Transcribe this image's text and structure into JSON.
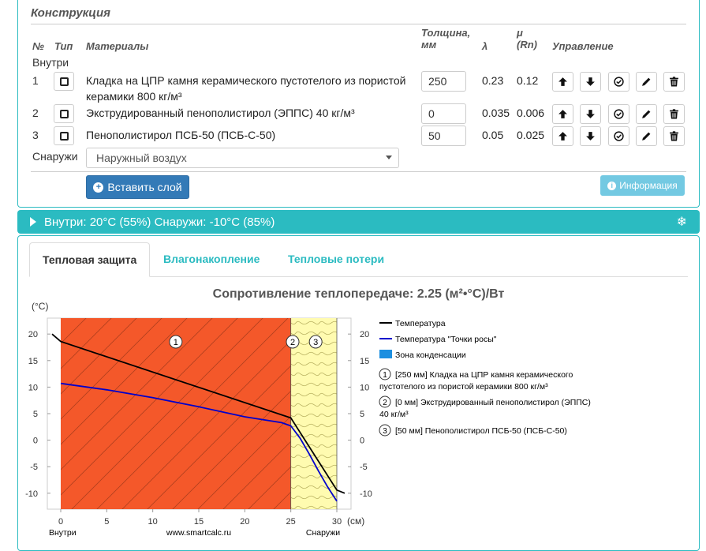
{
  "construction": {
    "title": "Конструкция",
    "headers": {
      "num": "№",
      "type": "Тип",
      "materials": "Материалы",
      "thickness_line1": "Толщина,",
      "thickness_line2": "мм",
      "lambda": "λ",
      "mu_line1": "μ",
      "mu_line2": "(Rn)",
      "control": "Управление"
    },
    "inside_label": "Внутри",
    "outside_label": "Снаружи",
    "layers": [
      {
        "num": "1",
        "name_line1": "Кладка на ЦПР камня керамического пустотелого из пористой",
        "name_line2": "керамики 800 кг/м³",
        "thickness": "250",
        "lambda": "0.23",
        "mu": "0.12"
      },
      {
        "num": "2",
        "name_line1": "Экструдированный пенополистирол (ЭППС) 40 кг/м³",
        "name_line2": "",
        "thickness": "0",
        "lambda": "0.035",
        "mu": "0.006"
      },
      {
        "num": "3",
        "name_line1": "Пенополистирол ПСБ-50 (ПСБ-С-50)",
        "name_line2": "",
        "thickness": "50",
        "lambda": "0.05",
        "mu": "0.025"
      }
    ],
    "outside_select": "Наружный воздух",
    "insert_button": "Вставить слой",
    "info_button": "Информация"
  },
  "conditions": "Внутри: 20°C (55%) Снаружи: -10°C (85%)",
  "tabs": [
    {
      "label": "Тепловая защита",
      "active": true
    },
    {
      "label": "Влагонакопление",
      "active": false
    },
    {
      "label": "Тепловые потери",
      "active": false
    }
  ],
  "chart_title": "Сопротивление теплопередаче: 2.25 (м²•°С)/Вт",
  "chart_data": {
    "type": "line",
    "ylabel": "(°C)",
    "xlabel": "(см)",
    "xlim": [
      0,
      30
    ],
    "ylim": [
      -13,
      23
    ],
    "x_ticks": [
      "0",
      "5",
      "10",
      "15",
      "20",
      "25",
      "30"
    ],
    "y_ticks": [
      "20",
      "15",
      "10",
      "5",
      "0",
      "-5",
      "-10"
    ],
    "x_start_label": "Внутри",
    "x_mid_label": "www.smartcalc.ru",
    "x_end_label": "Снаружи",
    "layer_labels": [
      "1",
      "2",
      "3"
    ],
    "layer_bounds_cm": [
      0,
      25,
      25,
      30
    ],
    "colors": {
      "layer1": "#f4582a",
      "layer3": "#fffbb0",
      "temperature": "#000000",
      "dew_point": "#0000cc",
      "condensation": "#1c8fe0"
    },
    "legend": [
      {
        "name": "Температура"
      },
      {
        "name": "Температура \"Точки росы\""
      },
      {
        "name": "Зона конденсации"
      }
    ],
    "layer_legend": [
      {
        "num": "1",
        "line1": "[250 мм] Кладка на ЦПР камня керамического",
        "line2": "пустотелого из пористой керамики 800 кг/м³"
      },
      {
        "num": "2",
        "line1": "[0 мм] Экструдированный пенополистирол (ЭППС)",
        "line2": "40 кг/м³"
      },
      {
        "num": "3",
        "line1": "[50 мм] Пенополистирол ПСБ-50 (ПСБ-С-50)",
        "line2": ""
      }
    ],
    "series": [
      {
        "name": "Температура",
        "x": [
          -1,
          0,
          25,
          25,
          30,
          31
        ],
        "y": [
          20,
          18.6,
          4.2,
          4.2,
          -9.4,
          -10
        ]
      },
      {
        "name": "Температура \"Точки росы\"",
        "x": [
          0,
          5,
          10,
          15,
          20,
          24,
          25,
          26,
          27,
          28,
          29,
          30
        ],
        "y": [
          10.7,
          9.5,
          8.0,
          6.3,
          4.4,
          3.3,
          2.7,
          0.4,
          -2.6,
          -5.8,
          -8.8,
          -11.5
        ]
      }
    ]
  }
}
